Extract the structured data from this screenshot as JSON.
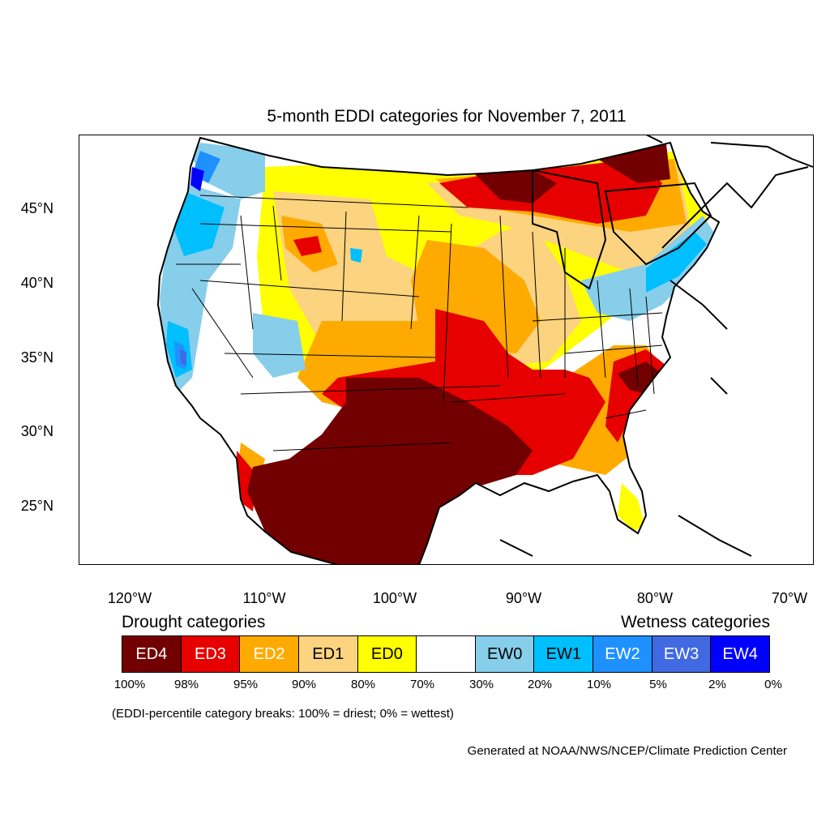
{
  "title": "5-month EDDI categories for November 7, 2011",
  "map": {
    "projection": "conic",
    "lat_ticks": [
      "45°N",
      "40°N",
      "35°N",
      "30°N",
      "25°N"
    ],
    "lon_ticks": [
      "120°W",
      "110°W",
      "100°W",
      "90°W",
      "80°W",
      "70°W"
    ],
    "boundaries": [
      "coastlines",
      "country borders",
      "US state borders",
      "Great Lakes"
    ]
  },
  "legend": {
    "drought_label": "Drought categories",
    "wetness_label": "Wetness categories",
    "categories": [
      {
        "label": "ED4",
        "color": "#730000",
        "text_color": "#ffffff"
      },
      {
        "label": "ED3",
        "color": "#e60000",
        "text_color": "#ffffff"
      },
      {
        "label": "ED2",
        "color": "#ffaa00",
        "text_color": "#ffffff"
      },
      {
        "label": "ED1",
        "color": "#fcd37f",
        "text_color": "#000000"
      },
      {
        "label": "ED0",
        "color": "#ffff00",
        "text_color": "#000000"
      },
      {
        "label": "",
        "color": "#ffffff",
        "text_color": "#000000"
      },
      {
        "label": "EW0",
        "color": "#87ceeb",
        "text_color": "#000000"
      },
      {
        "label": "EW1",
        "color": "#00bfff",
        "text_color": "#000000"
      },
      {
        "label": "EW2",
        "color": "#1e90ff",
        "text_color": "#ffffff"
      },
      {
        "label": "EW3",
        "color": "#4169e1",
        "text_color": "#ffffff"
      },
      {
        "label": "EW4",
        "color": "#0000ff",
        "text_color": "#ffffff"
      }
    ],
    "breaks": [
      "100%",
      "98%",
      "95%",
      "90%",
      "80%",
      "70%",
      "30%",
      "20%",
      "10%",
      "5%",
      "2%",
      "0%"
    ]
  },
  "note": "(EDDI-percentile category breaks: 100% = driest; 0% = wettest)",
  "credit": "Generated at NOAA/NWS/NCEP/Climate Prediction Center"
}
